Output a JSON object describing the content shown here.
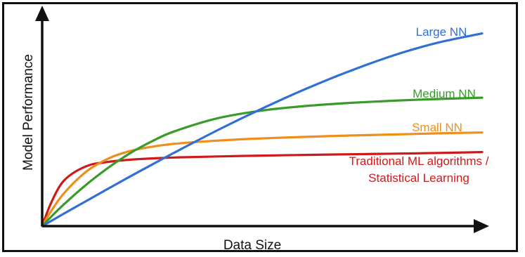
{
  "chart_data": {
    "type": "line",
    "title": "",
    "xlabel": "Data Size",
    "ylabel": "Model Performance",
    "xlim": [
      0,
      100
    ],
    "ylim": [
      0,
      100
    ],
    "grid": false,
    "legend": "inline-right",
    "x": [
      0,
      2,
      5,
      10,
      15,
      20,
      25,
      30,
      40,
      50,
      60,
      70,
      80,
      90,
      100
    ],
    "series": [
      {
        "name": "Large NN",
        "color": "#2f6fd6",
        "values": [
          0,
          2.3,
          5.8,
          11.5,
          17.2,
          22.8,
          28.3,
          33.7,
          44.2,
          54.0,
          63.1,
          71.3,
          78.5,
          84.3,
          88.5
        ]
      },
      {
        "name": "Medium NN",
        "color": "#3a9a2a",
        "values": [
          0,
          4.2,
          10.1,
          19.0,
          26.8,
          33.5,
          39.0,
          43.5,
          49.6,
          53.1,
          55.2,
          56.6,
          57.6,
          58.4,
          59.0
        ]
      },
      {
        "name": "Small NN",
        "color": "#ef8e1a",
        "values": [
          0,
          6.8,
          15.2,
          25.0,
          31.0,
          34.5,
          36.5,
          37.8,
          39.3,
          40.3,
          41.0,
          41.6,
          42.1,
          42.6,
          43.0
        ]
      },
      {
        "name": "Traditional ML algorithms / Statistical Learning",
        "label_lines": [
          "Traditional ML algorithms /",
          "Statistical Learning"
        ],
        "color": "#cf1a1a",
        "values": [
          0,
          10.5,
          21.0,
          27.5,
          29.5,
          30.5,
          31.1,
          31.5,
          32.0,
          32.4,
          32.7,
          33.0,
          33.3,
          33.6,
          34.0
        ]
      }
    ]
  }
}
